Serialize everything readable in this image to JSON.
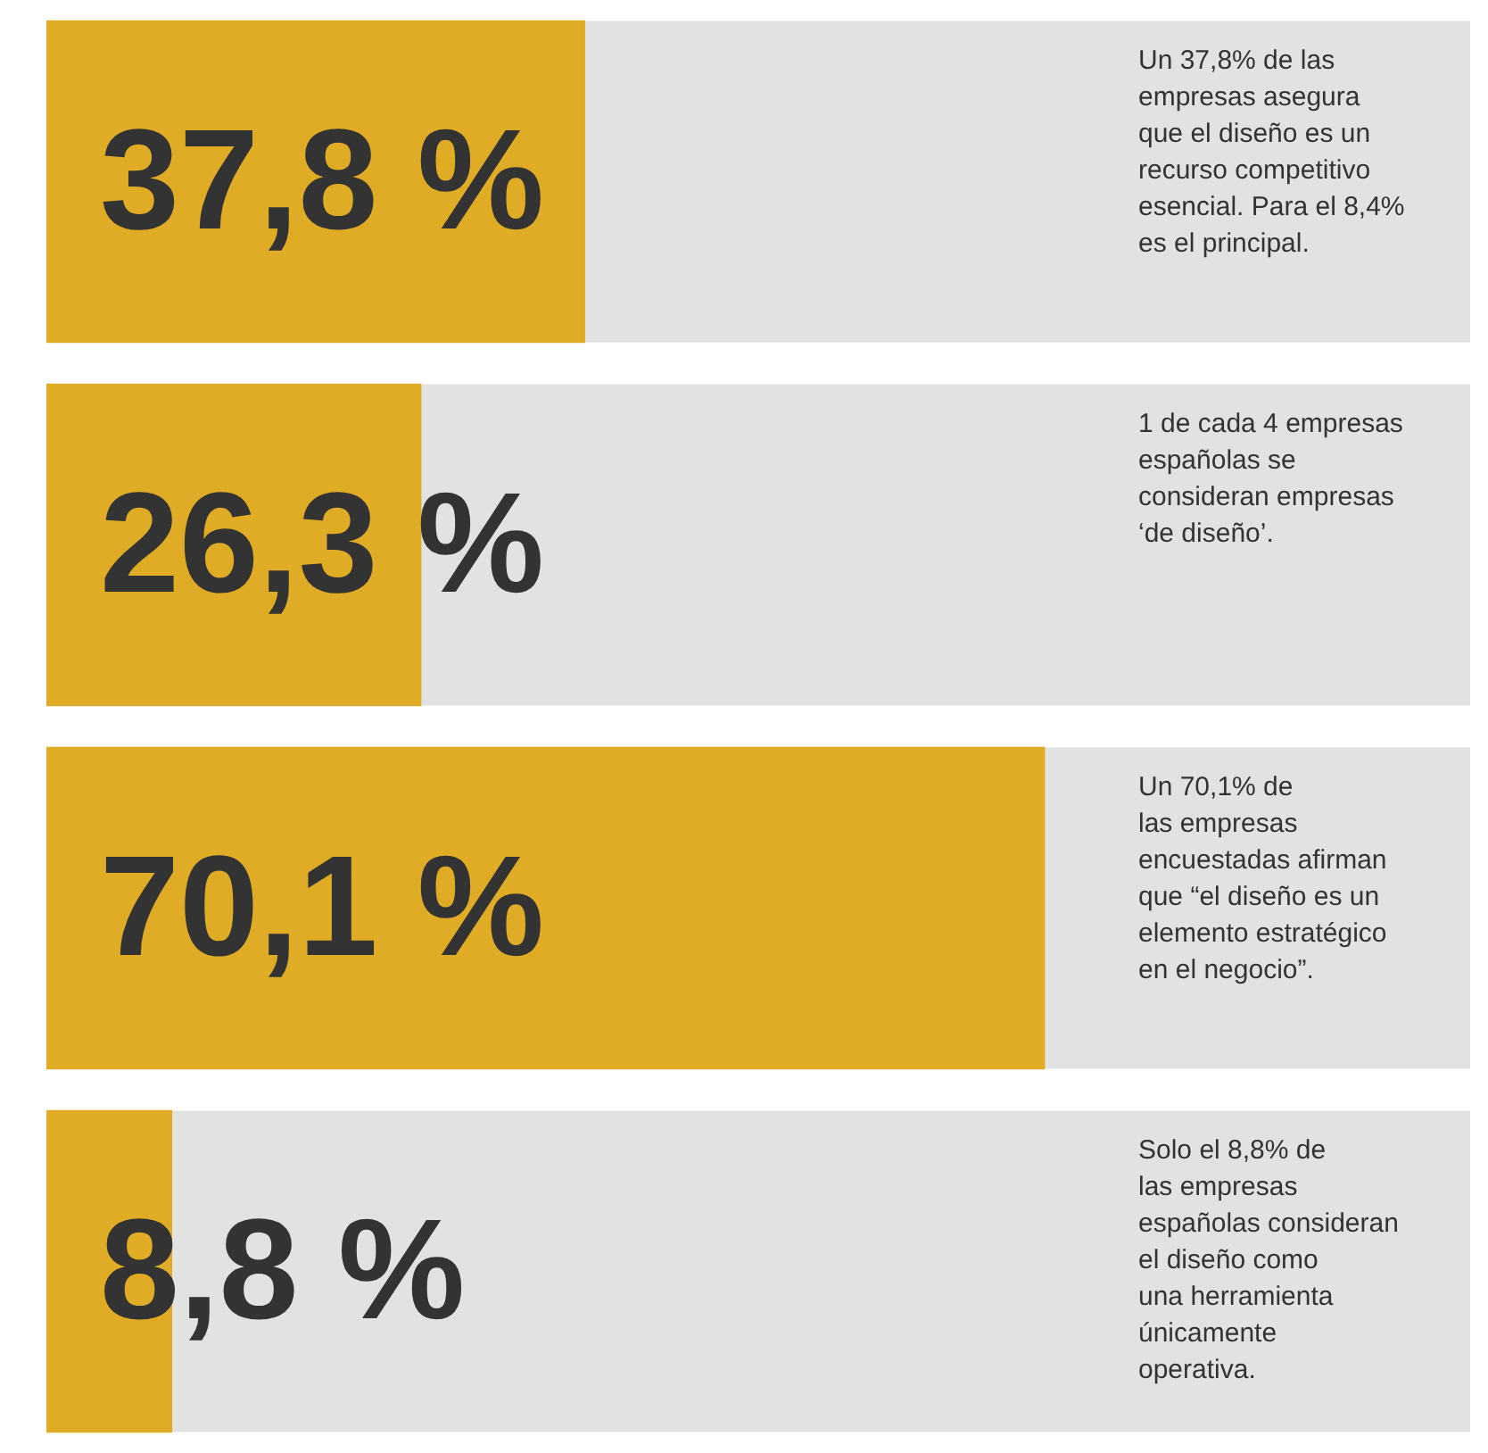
{
  "chart_data": {
    "type": "bar",
    "orientation": "horizontal",
    "categories": [
      null,
      null,
      null,
      null
    ],
    "series": [
      {
        "color": "#e0ac25",
        "values": [
          37.8,
          26.3,
          70.1,
          8.8
        ],
        "value_labels": [
          "37,8 %",
          "26,3 %",
          "70,1 %",
          "8,8 %"
        ]
      }
    ],
    "xlim": [
      0,
      100
    ],
    "tick_labels": false,
    "grid": false,
    "legend": false,
    "annotations": [
      "Un 37,8% de las\nempresas asegura\nque el diseño es un\nrecurso competitivo\nesencial. Para el 8,4%\nes el principal.",
      "1 de cada 4 empresas\nespañolas se\nconsideran empresas\n‘de diseño’.",
      "Un 70,1% de\nlas empresas\nencuestadas afirman\nque “el diseño es un\nelemento estratégico\nen el negocio”.",
      "Solo el 8,8% de\nlas empresas\nespañolas consideran\nel diseño como\nuna herramienta\núnicamente\noperativa."
    ]
  }
}
